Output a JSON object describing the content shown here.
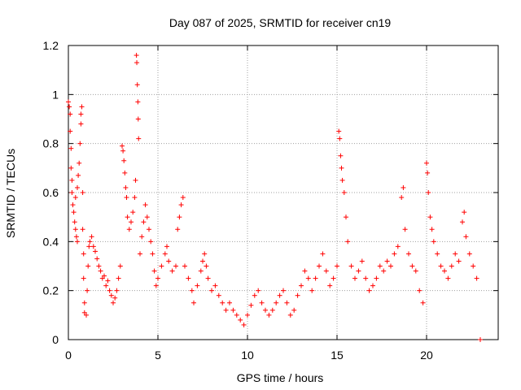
{
  "chart_data": {
    "type": "scatter",
    "title": "Day 087 of 2025, SRMTID for receiver cn19",
    "xlabel": "GPS time / hours",
    "ylabel": "SRMTID / TECUs",
    "xlim": [
      0,
      24
    ],
    "ylim": [
      0,
      1.2
    ],
    "xticks": [
      0,
      5,
      10,
      15,
      20
    ],
    "xtick_labels": [
      "0",
      "5",
      "10",
      "15",
      "20"
    ],
    "yticks": [
      0,
      0.2,
      0.4,
      0.6,
      0.8,
      1.0,
      1.2
    ],
    "ytick_labels": [
      "0",
      "0.2",
      "0.4",
      "0.6",
      "0.8",
      "1",
      "1.2"
    ],
    "grid": true,
    "marker": "+",
    "color": "#ff0000",
    "series": [
      {
        "name": "SRMTID",
        "points": [
          [
            0.0,
            0.97
          ],
          [
            0.05,
            0.95
          ],
          [
            0.1,
            0.92
          ],
          [
            0.1,
            0.85
          ],
          [
            0.15,
            0.78
          ],
          [
            0.15,
            0.7
          ],
          [
            0.2,
            0.65
          ],
          [
            0.2,
            0.6
          ],
          [
            0.25,
            0.55
          ],
          [
            0.3,
            0.52
          ],
          [
            0.35,
            0.48
          ],
          [
            0.4,
            0.45
          ],
          [
            0.45,
            0.42
          ],
          [
            0.5,
            0.4
          ],
          [
            0.4,
            0.58
          ],
          [
            0.5,
            0.62
          ],
          [
            0.55,
            0.67
          ],
          [
            0.6,
            0.72
          ],
          [
            0.65,
            0.8
          ],
          [
            0.7,
            0.92
          ],
          [
            0.75,
            0.95
          ],
          [
            0.7,
            0.88
          ],
          [
            0.8,
            0.6
          ],
          [
            0.8,
            0.45
          ],
          [
            0.85,
            0.35
          ],
          [
            0.85,
            0.25
          ],
          [
            0.9,
            0.15
          ],
          [
            0.9,
            0.11
          ],
          [
            1.0,
            0.1
          ],
          [
            1.05,
            0.2
          ],
          [
            1.1,
            0.3
          ],
          [
            1.15,
            0.38
          ],
          [
            1.2,
            0.4
          ],
          [
            1.3,
            0.42
          ],
          [
            1.4,
            0.38
          ],
          [
            1.5,
            0.36
          ],
          [
            1.6,
            0.33
          ],
          [
            1.7,
            0.3
          ],
          [
            1.8,
            0.28
          ],
          [
            1.9,
            0.25
          ],
          [
            2.0,
            0.26
          ],
          [
            2.1,
            0.22
          ],
          [
            2.2,
            0.24
          ],
          [
            2.3,
            0.2
          ],
          [
            2.4,
            0.18
          ],
          [
            2.5,
            0.15
          ],
          [
            2.6,
            0.17
          ],
          [
            2.7,
            0.2
          ],
          [
            2.8,
            0.25
          ],
          [
            2.9,
            0.3
          ],
          [
            3.0,
            0.79
          ],
          [
            3.05,
            0.77
          ],
          [
            3.1,
            0.73
          ],
          [
            3.15,
            0.68
          ],
          [
            3.2,
            0.62
          ],
          [
            3.25,
            0.58
          ],
          [
            3.3,
            0.5
          ],
          [
            3.4,
            0.45
          ],
          [
            3.5,
            0.48
          ],
          [
            3.6,
            0.52
          ],
          [
            3.7,
            0.58
          ],
          [
            3.75,
            0.65
          ],
          [
            3.8,
            1.16
          ],
          [
            3.82,
            1.13
          ],
          [
            3.85,
            1.04
          ],
          [
            3.88,
            0.97
          ],
          [
            3.9,
            0.9
          ],
          [
            3.92,
            0.82
          ],
          [
            4.0,
            0.35
          ],
          [
            4.1,
            0.42
          ],
          [
            4.2,
            0.48
          ],
          [
            4.3,
            0.55
          ],
          [
            4.4,
            0.5
          ],
          [
            4.5,
            0.45
          ],
          [
            4.6,
            0.4
          ],
          [
            4.7,
            0.35
          ],
          [
            4.8,
            0.28
          ],
          [
            4.9,
            0.22
          ],
          [
            5.0,
            0.25
          ],
          [
            5.2,
            0.3
          ],
          [
            5.4,
            0.35
          ],
          [
            5.5,
            0.38
          ],
          [
            5.6,
            0.32
          ],
          [
            5.8,
            0.28
          ],
          [
            6.0,
            0.3
          ],
          [
            6.1,
            0.45
          ],
          [
            6.2,
            0.5
          ],
          [
            6.3,
            0.55
          ],
          [
            6.4,
            0.58
          ],
          [
            6.5,
            0.3
          ],
          [
            6.7,
            0.25
          ],
          [
            6.9,
            0.2
          ],
          [
            7.0,
            0.15
          ],
          [
            7.2,
            0.22
          ],
          [
            7.4,
            0.28
          ],
          [
            7.5,
            0.32
          ],
          [
            7.6,
            0.35
          ],
          [
            7.7,
            0.3
          ],
          [
            7.8,
            0.25
          ],
          [
            8.0,
            0.2
          ],
          [
            8.2,
            0.22
          ],
          [
            8.4,
            0.18
          ],
          [
            8.6,
            0.15
          ],
          [
            8.8,
            0.12
          ],
          [
            9.0,
            0.15
          ],
          [
            9.2,
            0.12
          ],
          [
            9.4,
            0.1
          ],
          [
            9.6,
            0.08
          ],
          [
            9.8,
            0.06
          ],
          [
            10.0,
            0.1
          ],
          [
            10.2,
            0.14
          ],
          [
            10.4,
            0.18
          ],
          [
            10.6,
            0.2
          ],
          [
            10.8,
            0.15
          ],
          [
            11.0,
            0.12
          ],
          [
            11.2,
            0.1
          ],
          [
            11.4,
            0.12
          ],
          [
            11.6,
            0.15
          ],
          [
            11.8,
            0.18
          ],
          [
            12.0,
            0.2
          ],
          [
            12.2,
            0.15
          ],
          [
            12.4,
            0.1
          ],
          [
            12.6,
            0.12
          ],
          [
            12.8,
            0.18
          ],
          [
            13.0,
            0.22
          ],
          [
            13.2,
            0.28
          ],
          [
            13.4,
            0.25
          ],
          [
            13.6,
            0.2
          ],
          [
            13.8,
            0.25
          ],
          [
            14.0,
            0.3
          ],
          [
            14.2,
            0.35
          ],
          [
            14.4,
            0.28
          ],
          [
            14.6,
            0.22
          ],
          [
            14.8,
            0.25
          ],
          [
            15.0,
            0.3
          ],
          [
            15.1,
            0.85
          ],
          [
            15.15,
            0.82
          ],
          [
            15.2,
            0.75
          ],
          [
            15.25,
            0.7
          ],
          [
            15.3,
            0.65
          ],
          [
            15.4,
            0.6
          ],
          [
            15.5,
            0.5
          ],
          [
            15.6,
            0.4
          ],
          [
            15.8,
            0.3
          ],
          [
            16.0,
            0.25
          ],
          [
            16.2,
            0.28
          ],
          [
            16.4,
            0.32
          ],
          [
            16.6,
            0.25
          ],
          [
            16.8,
            0.2
          ],
          [
            17.0,
            0.22
          ],
          [
            17.2,
            0.25
          ],
          [
            17.4,
            0.3
          ],
          [
            17.6,
            0.28
          ],
          [
            17.8,
            0.32
          ],
          [
            18.0,
            0.3
          ],
          [
            18.2,
            0.35
          ],
          [
            18.4,
            0.38
          ],
          [
            18.6,
            0.58
          ],
          [
            18.7,
            0.62
          ],
          [
            18.8,
            0.45
          ],
          [
            19.0,
            0.35
          ],
          [
            19.2,
            0.3
          ],
          [
            19.4,
            0.28
          ],
          [
            19.6,
            0.2
          ],
          [
            19.8,
            0.15
          ],
          [
            20.0,
            0.72
          ],
          [
            20.05,
            0.68
          ],
          [
            20.1,
            0.6
          ],
          [
            20.2,
            0.5
          ],
          [
            20.3,
            0.45
          ],
          [
            20.4,
            0.4
          ],
          [
            20.6,
            0.35
          ],
          [
            20.8,
            0.3
          ],
          [
            21.0,
            0.28
          ],
          [
            21.2,
            0.25
          ],
          [
            21.4,
            0.3
          ],
          [
            21.6,
            0.35
          ],
          [
            21.8,
            0.32
          ],
          [
            22.0,
            0.48
          ],
          [
            22.1,
            0.52
          ],
          [
            22.2,
            0.42
          ],
          [
            22.4,
            0.35
          ],
          [
            22.6,
            0.3
          ],
          [
            22.8,
            0.25
          ],
          [
            23.0,
            0.0
          ]
        ]
      }
    ]
  }
}
